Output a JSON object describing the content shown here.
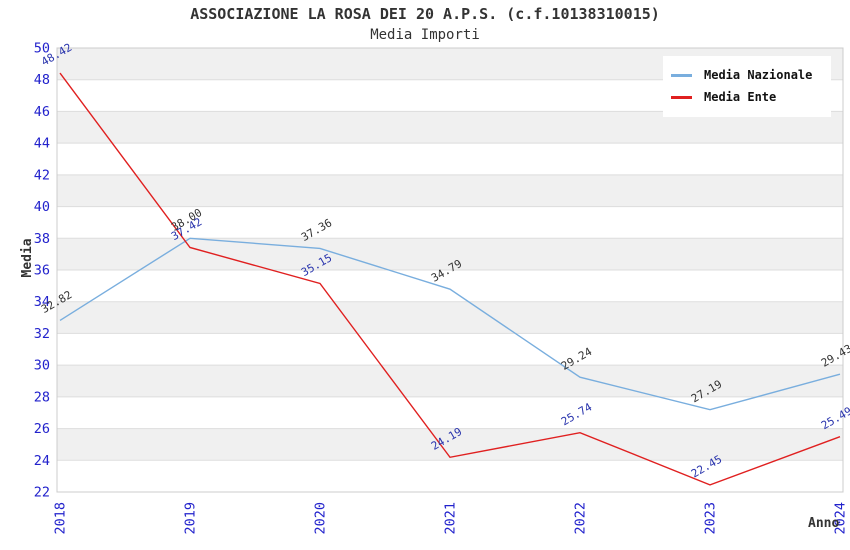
{
  "header": {
    "title": "ASSOCIAZIONE LA ROSA DEI 20 A.P.S. (c.f.10138310015)",
    "subtitle": "Media Importi"
  },
  "legend": {
    "items": [
      {
        "label": "Media Nazionale",
        "color": "#79aede"
      },
      {
        "label": "Media Ente",
        "color": "#e02020"
      }
    ]
  },
  "axes": {
    "ylabel": "Media",
    "xlabel": "Anno"
  },
  "chart_data": {
    "type": "line",
    "title": "ASSOCIAZIONE LA ROSA DEI 20 A.P.S. (c.f.10138310015)",
    "subtitle": "Media Importi",
    "xlabel": "Anno",
    "ylabel": "Media",
    "x": [
      2018,
      2019,
      2020,
      2021,
      2022,
      2023,
      2024
    ],
    "series": [
      {
        "name": "Media Nazionale",
        "color": "#79aede",
        "label_color": "#333333",
        "values": [
          32.82,
          38.0,
          37.36,
          34.79,
          29.24,
          27.19,
          29.43
        ]
      },
      {
        "name": "Media Ente",
        "color": "#e02020",
        "label_color": "#2a35ad",
        "values": [
          48.42,
          37.42,
          35.15,
          24.19,
          25.74,
          22.45,
          25.49
        ]
      }
    ],
    "ylim": [
      22,
      50
    ],
    "ytick_step": 2,
    "grid": true,
    "band_fill": "#f0f0f0",
    "grid_color": "#dddddd",
    "border_color": "#cccccc",
    "tick_color": "#2222cc",
    "legend_position": "upper-right"
  }
}
